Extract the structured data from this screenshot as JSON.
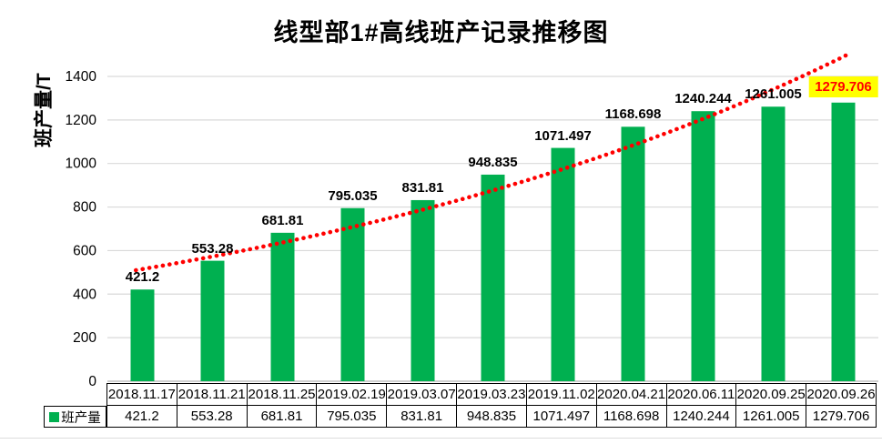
{
  "chart": {
    "title": "线型部1#高线班产记录推移图",
    "y_axis_title": "班产量/T"
  },
  "legend": {
    "label": "班产量",
    "marker_color": "#00B050"
  },
  "chart_data": {
    "type": "bar",
    "title": "线型部1#高线班产记录推移图",
    "ylabel": "班产量/T",
    "xlabel": "",
    "categories": [
      "2018.11.17",
      "2018.11.21",
      "2018.11.25",
      "2019.02.19",
      "2019.03.07",
      "2019.03.23",
      "2019.11.02",
      "2020.04.21",
      "2020.06.11",
      "2020.09.25",
      "2020.09.26"
    ],
    "series": [
      {
        "name": "班产量",
        "color": "#00B050",
        "values": [
          421.2,
          553.28,
          681.81,
          795.035,
          831.81,
          948.835,
          1071.497,
          1168.698,
          1240.244,
          1261.005,
          1279.706
        ]
      }
    ],
    "value_labels": [
      "421.2",
      "553.28",
      "681.81",
      "795.035",
      "831.81",
      "948.835",
      "1071.497",
      "1168.698",
      "1240.244",
      "1261.005",
      "1279.706"
    ],
    "ylim": [
      0,
      1545
    ],
    "yticks": [
      0,
      200,
      400,
      600,
      800,
      1000,
      1200,
      1400
    ],
    "grid": "horizontal",
    "gridline_color": "#D9D9D9",
    "axis_line_color": "#D0D0D0",
    "data_labels": true,
    "last_label_highlight": {
      "bg": "#FFFF00",
      "text_color": "#FF0000"
    },
    "trendline": {
      "type": "exponential",
      "style": "dotted",
      "color": "#FF0000",
      "x_start_frac": 0.037,
      "x_end_frac": 0.965,
      "value_start": 510,
      "value_end": 1509
    },
    "legend_position": "table-row-header"
  },
  "table": {
    "row_label": "班产量"
  }
}
